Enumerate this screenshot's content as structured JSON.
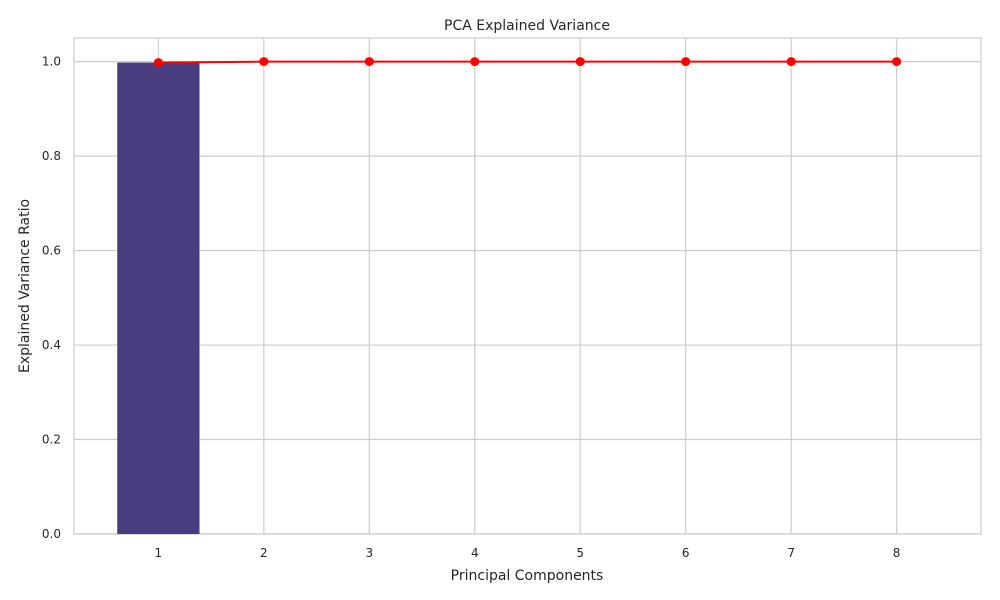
{
  "chart_data": {
    "type": "bar",
    "title": "PCA Explained Variance",
    "xlabel": "Principal Components",
    "ylabel": "Explained Variance Ratio",
    "x": [
      1,
      2,
      3,
      4,
      5,
      6,
      7,
      8
    ],
    "xlim": [
      0.2,
      8.8
    ],
    "ylim": [
      0,
      1.05
    ],
    "yticks": [
      0.0,
      0.2,
      0.4,
      0.6,
      0.8,
      1.0
    ],
    "ytick_labels": [
      "0.0",
      "0.2",
      "0.4",
      "0.6",
      "0.8",
      "1.0"
    ],
    "grid": true,
    "legend": "none",
    "series": [
      {
        "type": "bar",
        "values": [
          0.998,
          0.0,
          0.0,
          0.0,
          0.0,
          0.0,
          0.0,
          0.0
        ],
        "color": "#483d7f"
      },
      {
        "type": "line",
        "marker": "circle",
        "values": [
          0.998,
          1.0,
          1.0,
          1.0,
          1.0,
          1.0,
          1.0,
          1.0
        ],
        "color": "#ff0000"
      }
    ]
  }
}
